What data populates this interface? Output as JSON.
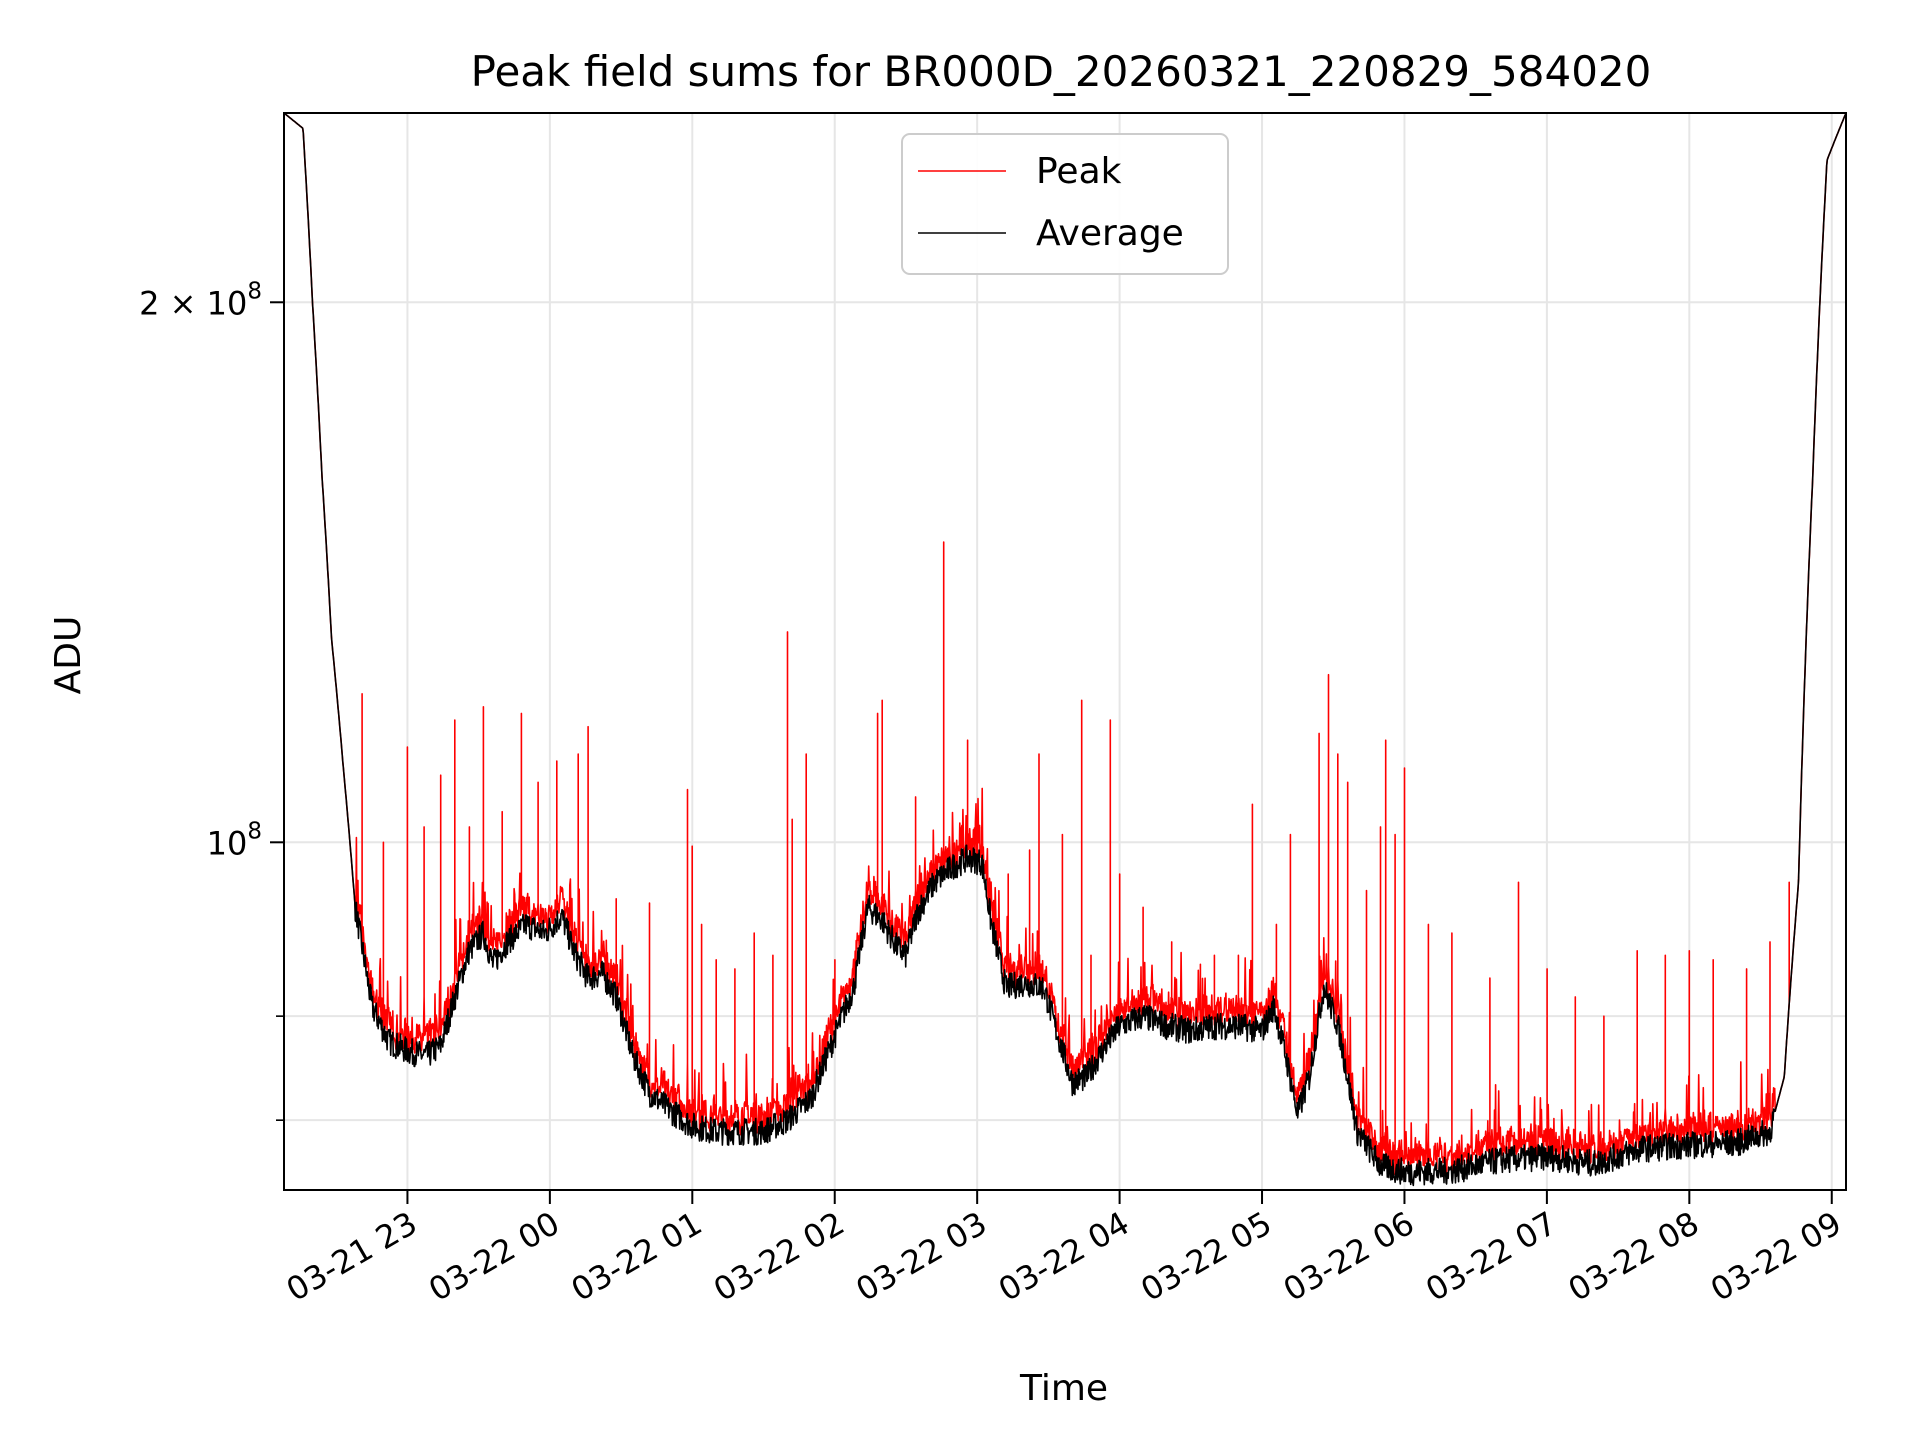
{
  "chart_data": {
    "type": "line",
    "title": "Peak field sums for BR000D_20260321_220829_584020",
    "xlabel": "Time",
    "ylabel": "ADU",
    "y_scale": "log",
    "ylim": [
      64000000,
      255000000
    ],
    "xlim": [
      "2026-03-21 22:08",
      "2026-03-22 09:06"
    ],
    "grid": true,
    "legend_position": "top-center",
    "x_ticks": [
      {
        "value": "2026-03-21 23:00",
        "label": "03-21 23"
      },
      {
        "value": "2026-03-22 00:00",
        "label": "03-22 00"
      },
      {
        "value": "2026-03-22 01:00",
        "label": "03-22 01"
      },
      {
        "value": "2026-03-22 02:00",
        "label": "03-22 02"
      },
      {
        "value": "2026-03-22 03:00",
        "label": "03-22 03"
      },
      {
        "value": "2026-03-22 04:00",
        "label": "03-22 04"
      },
      {
        "value": "2026-03-22 05:00",
        "label": "03-22 05"
      },
      {
        "value": "2026-03-22 06:00",
        "label": "03-22 06"
      },
      {
        "value": "2026-03-22 07:00",
        "label": "03-22 07"
      },
      {
        "value": "2026-03-22 08:00",
        "label": "03-22 08"
      },
      {
        "value": "2026-03-22 09:00",
        "label": "03-22 09"
      }
    ],
    "y_ticks": [
      {
        "value": 100000000,
        "label_base": "10",
        "label_exp": "8",
        "label_prefix": ""
      },
      {
        "value": 200000000,
        "label_base": "10",
        "label_exp": "8",
        "label_prefix": "2 × "
      }
    ],
    "y_minor_ticks": [
      70000000,
      80000000
    ],
    "series": [
      {
        "name": "Average",
        "color": "#000000",
        "points": [
          [
            "2026-03-21 22:08",
            255000000
          ],
          [
            "2026-03-21 22:16",
            250000000
          ],
          [
            "2026-03-21 22:20",
            200000000
          ],
          [
            "2026-03-21 22:24",
            160000000
          ],
          [
            "2026-03-21 22:28",
            130000000
          ],
          [
            "2026-03-21 22:33",
            110000000
          ],
          [
            "2026-03-21 22:38",
            92000000
          ],
          [
            "2026-03-21 22:45",
            81000000
          ],
          [
            "2026-03-21 22:52",
            77500000
          ],
          [
            "2026-03-21 23:00",
            76500000
          ],
          [
            "2026-03-21 23:08",
            76000000
          ],
          [
            "2026-03-21 23:14",
            77000000
          ],
          [
            "2026-03-21 23:20",
            82000000
          ],
          [
            "2026-03-21 23:26",
            87000000
          ],
          [
            "2026-03-21 23:32",
            89000000
          ],
          [
            "2026-03-21 23:36",
            85500000
          ],
          [
            "2026-03-21 23:42",
            88000000
          ],
          [
            "2026-03-21 23:50",
            90000000
          ],
          [
            "2026-03-21 23:58",
            89000000
          ],
          [
            "2026-03-22 00:05",
            91000000
          ],
          [
            "2026-03-22 00:10",
            87000000
          ],
          [
            "2026-03-22 00:16",
            84000000
          ],
          [
            "2026-03-22 00:22",
            84500000
          ],
          [
            "2026-03-22 00:28",
            82000000
          ],
          [
            "2026-03-22 00:35",
            76000000
          ],
          [
            "2026-03-22 00:42",
            72500000
          ],
          [
            "2026-03-22 00:50",
            71000000
          ],
          [
            "2026-03-22 01:00",
            69500000
          ],
          [
            "2026-03-22 01:10",
            69000000
          ],
          [
            "2026-03-22 01:20",
            69000000
          ],
          [
            "2026-03-22 01:30",
            69000000
          ],
          [
            "2026-03-22 01:40",
            70000000
          ],
          [
            "2026-03-22 01:50",
            72000000
          ],
          [
            "2026-03-22 02:00",
            78000000
          ],
          [
            "2026-03-22 02:08",
            83000000
          ],
          [
            "2026-03-22 02:14",
            92000000
          ],
          [
            "2026-03-22 02:20",
            90500000
          ],
          [
            "2026-03-22 02:26",
            87500000
          ],
          [
            "2026-03-22 02:30",
            86500000
          ],
          [
            "2026-03-22 02:35",
            91500000
          ],
          [
            "2026-03-22 02:42",
            95000000
          ],
          [
            "2026-03-22 02:50",
            97000000
          ],
          [
            "2026-03-22 02:56",
            98000000
          ],
          [
            "2026-03-22 03:02",
            97500000
          ],
          [
            "2026-03-22 03:06",
            90000000
          ],
          [
            "2026-03-22 03:12",
            83000000
          ],
          [
            "2026-03-22 03:20",
            83500000
          ],
          [
            "2026-03-22 03:28",
            83000000
          ],
          [
            "2026-03-22 03:34",
            78000000
          ],
          [
            "2026-03-22 03:40",
            73500000
          ],
          [
            "2026-03-22 03:46",
            74000000
          ],
          [
            "2026-03-22 03:54",
            77000000
          ],
          [
            "2026-03-22 04:00",
            79000000
          ],
          [
            "2026-03-22 04:10",
            80000000
          ],
          [
            "2026-03-22 04:20",
            79000000
          ],
          [
            "2026-03-22 04:30",
            78500000
          ],
          [
            "2026-03-22 04:40",
            79000000
          ],
          [
            "2026-03-22 04:50",
            79000000
          ],
          [
            "2026-03-22 05:00",
            78500000
          ],
          [
            "2026-03-22 05:05",
            81000000
          ],
          [
            "2026-03-22 05:10",
            76000000
          ],
          [
            "2026-03-22 05:15",
            70500000
          ],
          [
            "2026-03-22 05:20",
            74000000
          ],
          [
            "2026-03-22 05:26",
            83000000
          ],
          [
            "2026-03-22 05:32",
            79000000
          ],
          [
            "2026-03-22 05:40",
            69000000
          ],
          [
            "2026-03-22 05:50",
            66000000
          ],
          [
            "2026-03-22 06:00",
            65500000
          ],
          [
            "2026-03-22 06:20",
            65600000
          ],
          [
            "2026-03-22 06:40",
            66500000
          ],
          [
            "2026-03-22 07:00",
            66800000
          ],
          [
            "2026-03-22 07:20",
            66200000
          ],
          [
            "2026-03-22 07:40",
            67500000
          ],
          [
            "2026-03-22 08:00",
            67800000
          ],
          [
            "2026-03-22 08:20",
            68000000
          ],
          [
            "2026-03-22 08:34",
            69000000
          ],
          [
            "2026-03-22 08:40",
            74000000
          ],
          [
            "2026-03-22 08:46",
            95000000
          ],
          [
            "2026-03-22 08:52",
            160000000
          ],
          [
            "2026-03-22 08:58",
            240000000
          ],
          [
            "2026-03-22 09:06",
            255000000
          ]
        ]
      },
      {
        "name": "Peak",
        "color": "#ff0000",
        "spikes": [
          [
            "2026-03-21 22:41",
            121000000
          ],
          [
            "2026-03-21 22:50",
            100000000
          ],
          [
            "2026-03-21 23:00",
            113000000
          ],
          [
            "2026-03-21 23:07",
            102000000
          ],
          [
            "2026-03-21 23:14",
            109000000
          ],
          [
            "2026-03-21 23:20",
            117000000
          ],
          [
            "2026-03-21 23:26",
            102000000
          ],
          [
            "2026-03-21 23:32",
            119000000
          ],
          [
            "2026-03-21 23:40",
            104000000
          ],
          [
            "2026-03-21 23:48",
            118000000
          ],
          [
            "2026-03-21 23:55",
            108000000
          ],
          [
            "2026-03-22 00:03",
            111000000
          ],
          [
            "2026-03-22 00:12",
            112000000
          ],
          [
            "2026-03-22 00:16",
            116000000
          ],
          [
            "2026-03-22 00:28",
            93000000
          ],
          [
            "2026-03-22 00:42",
            92500000
          ],
          [
            "2026-03-22 00:58",
            107000000
          ],
          [
            "2026-03-22 01:00",
            99500000
          ],
          [
            "2026-03-22 01:04",
            90000000
          ],
          [
            "2026-03-22 01:10",
            86000000
          ],
          [
            "2026-03-22 01:18",
            85000000
          ],
          [
            "2026-03-22 01:26",
            89000000
          ],
          [
            "2026-03-22 01:34",
            86500000
          ],
          [
            "2026-03-22 01:40",
            131000000
          ],
          [
            "2026-03-22 01:42",
            103000000
          ],
          [
            "2026-03-22 01:48",
            112000000
          ],
          [
            "2026-03-22 02:00",
            86000000
          ],
          [
            "2026-03-22 02:18",
            118000000
          ],
          [
            "2026-03-22 02:20",
            120000000
          ],
          [
            "2026-03-22 02:34",
            106000000
          ],
          [
            "2026-03-22 02:46",
            147000000
          ],
          [
            "2026-03-22 02:56",
            114000000
          ],
          [
            "2026-03-22 03:02",
            102000000
          ],
          [
            "2026-03-22 03:13",
            96000000
          ],
          [
            "2026-03-22 03:22",
            99000000
          ],
          [
            "2026-03-22 03:26",
            112000000
          ],
          [
            "2026-03-22 03:36",
            101000000
          ],
          [
            "2026-03-22 03:44",
            120000000
          ],
          [
            "2026-03-22 03:48",
            86500000
          ],
          [
            "2026-03-22 03:56",
            117000000
          ],
          [
            "2026-03-22 04:00",
            96000000
          ],
          [
            "2026-03-22 04:10",
            92000000
          ],
          [
            "2026-03-22 04:22",
            88000000
          ],
          [
            "2026-03-22 04:34",
            85500000
          ],
          [
            "2026-03-22 04:40",
            86500000
          ],
          [
            "2026-03-22 04:50",
            86500000
          ],
          [
            "2026-03-22 04:56",
            105000000
          ],
          [
            "2026-03-22 05:06",
            90000000
          ],
          [
            "2026-03-22 05:12",
            101000000
          ],
          [
            "2026-03-22 05:24",
            115000000
          ],
          [
            "2026-03-22 05:28",
            124000000
          ],
          [
            "2026-03-22 05:32",
            112000000
          ],
          [
            "2026-03-22 05:36",
            108000000
          ],
          [
            "2026-03-22 05:44",
            94000000
          ],
          [
            "2026-03-22 05:50",
            102000000
          ],
          [
            "2026-03-22 05:52",
            114000000
          ],
          [
            "2026-03-22 05:56",
            101000000
          ],
          [
            "2026-03-22 06:00",
            110000000
          ],
          [
            "2026-03-22 06:10",
            90000000
          ],
          [
            "2026-03-22 06:20",
            89000000
          ],
          [
            "2026-03-22 06:36",
            84000000
          ],
          [
            "2026-03-22 06:48",
            95000000
          ],
          [
            "2026-03-22 07:00",
            85000000
          ],
          [
            "2026-03-22 07:12",
            82000000
          ],
          [
            "2026-03-22 07:24",
            80000000
          ],
          [
            "2026-03-22 07:38",
            87000000
          ],
          [
            "2026-03-22 07:50",
            86500000
          ],
          [
            "2026-03-22 08:00",
            87000000
          ],
          [
            "2026-03-22 08:10",
            86000000
          ],
          [
            "2026-03-22 08:24",
            85000000
          ],
          [
            "2026-03-22 08:34",
            88000000
          ],
          [
            "2026-03-22 08:42",
            95000000
          ]
        ]
      }
    ]
  }
}
